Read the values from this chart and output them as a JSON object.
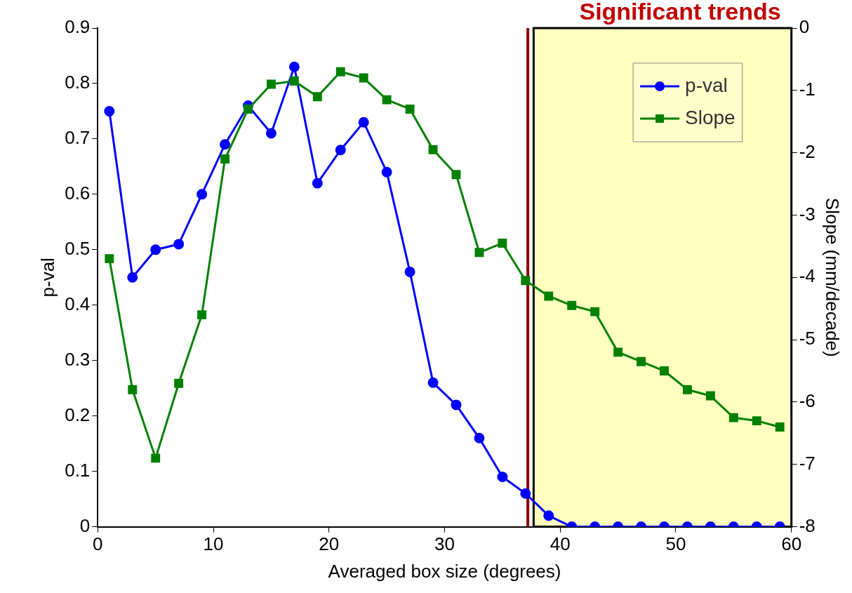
{
  "chart_data": {
    "type": "line",
    "xlabel": "Averaged box size (degrees)",
    "ylabel": "p-val",
    "y2label": "Slope (mm/decade)",
    "x": [
      1,
      3,
      5,
      7,
      9,
      11,
      13,
      15,
      17,
      19,
      21,
      23,
      25,
      27,
      29,
      31,
      33,
      35,
      37,
      39,
      41,
      43,
      45,
      47,
      49,
      51,
      53,
      55,
      57,
      59
    ],
    "series": [
      {
        "name": "p-val",
        "color": "#0000ff",
        "marker": "circle",
        "values": [
          0.75,
          0.45,
          0.5,
          0.51,
          0.6,
          0.69,
          0.76,
          0.71,
          0.83,
          0.62,
          0.68,
          0.73,
          0.64,
          0.46,
          0.26,
          0.22,
          0.16,
          0.09,
          0.06,
          0.02,
          0,
          0,
          0,
          0,
          0,
          0,
          0,
          0,
          0,
          0
        ]
      },
      {
        "name": "Slope",
        "color": "#008000",
        "marker": "square",
        "axis": "y2",
        "values": [
          -3.7,
          -5.8,
          -6.9,
          -5.7,
          -4.6,
          -2.1,
          -1.3,
          -0.9,
          -0.85,
          -1.1,
          -0.7,
          -0.8,
          -1.15,
          -1.3,
          -1.95,
          -2.35,
          -3.6,
          -3.45,
          -4.05,
          -4.3,
          -4.45,
          -4.55,
          -5.2,
          -5.35,
          -5.5,
          -5.8,
          -5.9,
          -6.25,
          -6.3,
          -6.4
        ]
      }
    ],
    "xlim": [
      0,
      60
    ],
    "xticks": [
      0,
      10,
      20,
      30,
      40,
      50,
      60
    ],
    "ylim": [
      0,
      0.9
    ],
    "yticks": [
      0,
      0.1,
      0.2,
      0.3,
      0.4,
      0.5,
      0.6,
      0.7,
      0.8,
      0.9
    ],
    "y2lim": [
      -8,
      0
    ],
    "y2ticks": [
      -8,
      -7,
      -6,
      -5,
      -4,
      -3,
      -2,
      -1,
      0
    ],
    "ref_lines": [
      {
        "axis": "x",
        "value": 37.2,
        "color": "#8b0000"
      }
    ],
    "bands": [
      {
        "axis": "x",
        "from": 37.7,
        "to": 60,
        "label": "Significant trends",
        "color": "#ffffc0"
      }
    ],
    "legend": "top right"
  }
}
